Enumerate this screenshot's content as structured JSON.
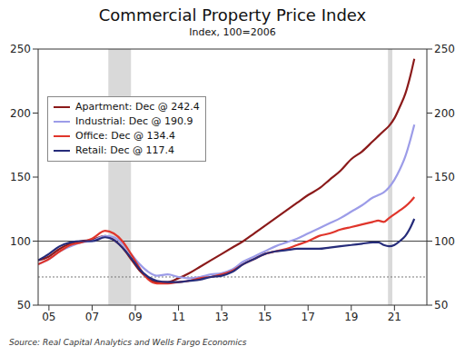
{
  "chart_data": {
    "type": "line",
    "title": "Commercial Property Price Index",
    "subtitle": "Index, 100=2006",
    "source": "Source: Real Capital Analytics and Wells Fargo Economics",
    "x": [
      2004.5,
      2005,
      2005.5,
      2006,
      2006.5,
      2007,
      2007.6,
      2008,
      2008.4,
      2008.8,
      2009.2,
      2009.6,
      2010,
      2010.5,
      2011,
      2011.5,
      2012,
      2012.5,
      2013,
      2013.5,
      2014,
      2014.5,
      2015,
      2015.5,
      2016,
      2016.5,
      2017,
      2017.5,
      2018,
      2018.5,
      2019,
      2019.5,
      2020,
      2020.25,
      2020.5,
      2020.75,
      2021,
      2021.25,
      2021.5,
      2021.75,
      2021.92
    ],
    "series": [
      {
        "name": "Apartment: Dec @ 242.4",
        "color": "#8b1a1a",
        "values": [
          85,
          88,
          94,
          98,
          100,
          101,
          104,
          101,
          95,
          86,
          77,
          71,
          68,
          68,
          71,
          75,
          80,
          85,
          90,
          95,
          100,
          106,
          112,
          118,
          124,
          130,
          136,
          141,
          148,
          155,
          164,
          170,
          178,
          182,
          186,
          190,
          196,
          205,
          215,
          230,
          242.4
        ]
      },
      {
        "name": "Industrial: Dec @ 190.9",
        "color": "#9c9ce8",
        "values": [
          82,
          86,
          92,
          96,
          99,
          100,
          104,
          103,
          98,
          90,
          82,
          76,
          73,
          74,
          72,
          71,
          72,
          74,
          75,
          78,
          84,
          88,
          92,
          96,
          99,
          102,
          106,
          110,
          114,
          118,
          123,
          128,
          134,
          136,
          138,
          142,
          148,
          156,
          166,
          180,
          190.9
        ]
      },
      {
        "name": "Office: Dec @ 134.4",
        "color": "#e0352b",
        "values": [
          82,
          86,
          92,
          97,
          99,
          102,
          108,
          106,
          100,
          90,
          79,
          70,
          67,
          67,
          68,
          69,
          71,
          72,
          74,
          77,
          82,
          86,
          90,
          92,
          94,
          97,
          100,
          104,
          106,
          109,
          111,
          113,
          115,
          116,
          115,
          118,
          121,
          124,
          127,
          131,
          134.4
        ]
      },
      {
        "name": "Retail: Dec @ 117.4",
        "color": "#262c7a",
        "values": [
          85,
          90,
          96,
          99,
          100,
          100,
          103,
          101,
          95,
          87,
          78,
          72,
          69,
          68,
          68,
          69,
          70,
          72,
          73,
          76,
          82,
          86,
          90,
          92,
          93,
          94,
          94,
          94,
          95,
          96,
          97,
          98,
          99,
          99,
          97,
          96,
          97,
          100,
          104,
          111,
          117.4
        ]
      }
    ],
    "xlim": [
      2004.5,
      2022.5
    ],
    "xticks": [
      {
        "value": 2005,
        "label": "05"
      },
      {
        "value": 2007,
        "label": "07"
      },
      {
        "value": 2009,
        "label": "09"
      },
      {
        "value": 2011,
        "label": "11"
      },
      {
        "value": 2013,
        "label": "13"
      },
      {
        "value": 2015,
        "label": "15"
      },
      {
        "value": 2017,
        "label": "17"
      },
      {
        "value": 2019,
        "label": "19"
      },
      {
        "value": 2021,
        "label": "21"
      }
    ],
    "ylim": [
      50,
      250
    ],
    "yticks": [
      50,
      100,
      150,
      200,
      250
    ],
    "y2lim": [
      50,
      250
    ],
    "y2ticks": [
      50,
      100,
      150,
      200,
      250
    ],
    "shaded_ranges": [
      [
        2007.75,
        2008.8
      ],
      [
        2020.7,
        2020.9
      ]
    ],
    "reference_lines": [
      {
        "value": 100,
        "line_style": "solid"
      },
      {
        "value": 72,
        "line_style": "dotted"
      }
    ],
    "legend": "upper left",
    "grid": false
  }
}
